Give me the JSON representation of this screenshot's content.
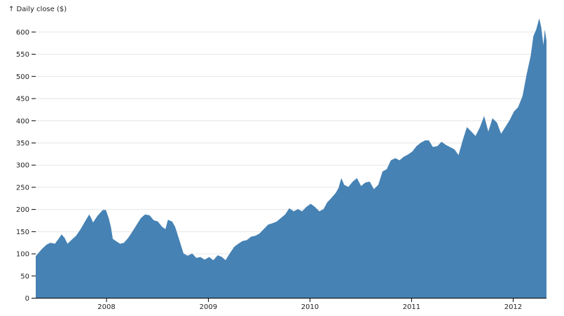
{
  "chart_data": {
    "type": "area",
    "title": "",
    "xlabel": "",
    "ylabel": "↑ Daily close ($)",
    "color": "#4682b4",
    "grid": "horizontal",
    "ylim": [
      0,
      640
    ],
    "xlim": [
      "2007-04-23",
      "2012-05-01"
    ],
    "yticks": [
      0,
      50,
      100,
      150,
      200,
      250,
      300,
      350,
      400,
      450,
      500,
      550,
      600
    ],
    "xticks": [
      "2008",
      "2009",
      "2010",
      "2011",
      "2012"
    ],
    "points": [
      [
        "2007-04-23",
        94
      ],
      [
        "2007-05-01",
        100
      ],
      [
        "2007-05-15",
        110
      ],
      [
        "2007-06-01",
        120
      ],
      [
        "2007-06-15",
        124
      ],
      [
        "2007-07-01",
        122
      ],
      [
        "2007-07-15",
        134
      ],
      [
        "2007-07-25",
        143
      ],
      [
        "2007-08-05",
        135
      ],
      [
        "2007-08-15",
        122
      ],
      [
        "2007-09-01",
        132
      ],
      [
        "2007-09-15",
        140
      ],
      [
        "2007-10-01",
        155
      ],
      [
        "2007-10-15",
        170
      ],
      [
        "2007-11-01",
        188
      ],
      [
        "2007-11-08",
        180
      ],
      [
        "2007-11-15",
        170
      ],
      [
        "2007-12-01",
        185
      ],
      [
        "2007-12-20",
        198
      ],
      [
        "2007-12-31",
        198
      ],
      [
        "2008-01-10",
        180
      ],
      [
        "2008-01-18",
        160
      ],
      [
        "2008-01-25",
        133
      ],
      [
        "2008-02-05",
        128
      ],
      [
        "2008-02-20",
        122
      ],
      [
        "2008-03-05",
        124
      ],
      [
        "2008-03-20",
        135
      ],
      [
        "2008-04-05",
        150
      ],
      [
        "2008-04-20",
        165
      ],
      [
        "2008-05-05",
        180
      ],
      [
        "2008-05-20",
        188
      ],
      [
        "2008-06-05",
        186
      ],
      [
        "2008-06-20",
        175
      ],
      [
        "2008-07-05",
        172
      ],
      [
        "2008-07-20",
        160
      ],
      [
        "2008-08-01",
        155
      ],
      [
        "2008-08-10",
        176
      ],
      [
        "2008-08-25",
        172
      ],
      [
        "2008-09-05",
        160
      ],
      [
        "2008-09-20",
        130
      ],
      [
        "2008-10-05",
        100
      ],
      [
        "2008-10-20",
        95
      ],
      [
        "2008-11-05",
        100
      ],
      [
        "2008-11-20",
        90
      ],
      [
        "2008-12-05",
        92
      ],
      [
        "2008-12-20",
        86
      ],
      [
        "2009-01-05",
        92
      ],
      [
        "2009-01-20",
        85
      ],
      [
        "2009-02-05",
        96
      ],
      [
        "2009-02-20",
        92
      ],
      [
        "2009-03-05",
        85
      ],
      [
        "2009-03-20",
        100
      ],
      [
        "2009-04-05",
        115
      ],
      [
        "2009-04-20",
        122
      ],
      [
        "2009-05-05",
        128
      ],
      [
        "2009-05-20",
        130
      ],
      [
        "2009-06-05",
        138
      ],
      [
        "2009-06-20",
        140
      ],
      [
        "2009-07-05",
        145
      ],
      [
        "2009-07-20",
        155
      ],
      [
        "2009-08-05",
        165
      ],
      [
        "2009-08-20",
        168
      ],
      [
        "2009-09-05",
        172
      ],
      [
        "2009-09-20",
        180
      ],
      [
        "2009-10-05",
        188
      ],
      [
        "2009-10-20",
        202
      ],
      [
        "2009-11-05",
        195
      ],
      [
        "2009-11-20",
        200
      ],
      [
        "2009-12-05",
        195
      ],
      [
        "2009-12-20",
        205
      ],
      [
        "2010-01-05",
        212
      ],
      [
        "2010-01-20",
        205
      ],
      [
        "2010-02-05",
        195
      ],
      [
        "2010-02-20",
        200
      ],
      [
        "2010-03-05",
        215
      ],
      [
        "2010-03-20",
        225
      ],
      [
        "2010-04-05",
        237
      ],
      [
        "2010-04-15",
        248
      ],
      [
        "2010-04-25",
        270
      ],
      [
        "2010-05-05",
        255
      ],
      [
        "2010-05-20",
        250
      ],
      [
        "2010-06-05",
        262
      ],
      [
        "2010-06-20",
        270
      ],
      [
        "2010-07-05",
        252
      ],
      [
        "2010-07-20",
        260
      ],
      [
        "2010-08-05",
        262
      ],
      [
        "2010-08-20",
        245
      ],
      [
        "2010-09-05",
        255
      ],
      [
        "2010-09-20",
        285
      ],
      [
        "2010-10-05",
        290
      ],
      [
        "2010-10-20",
        310
      ],
      [
        "2010-11-05",
        315
      ],
      [
        "2010-11-20",
        310
      ],
      [
        "2010-12-05",
        318
      ],
      [
        "2010-12-20",
        323
      ],
      [
        "2011-01-05",
        330
      ],
      [
        "2011-01-20",
        342
      ],
      [
        "2011-02-05",
        350
      ],
      [
        "2011-02-20",
        355
      ],
      [
        "2011-03-05",
        355
      ],
      [
        "2011-03-20",
        340
      ],
      [
        "2011-04-05",
        342
      ],
      [
        "2011-04-20",
        352
      ],
      [
        "2011-05-05",
        345
      ],
      [
        "2011-05-20",
        340
      ],
      [
        "2011-06-05",
        335
      ],
      [
        "2011-06-20",
        322
      ],
      [
        "2011-07-05",
        355
      ],
      [
        "2011-07-20",
        385
      ],
      [
        "2011-08-05",
        375
      ],
      [
        "2011-08-20",
        365
      ],
      [
        "2011-09-05",
        385
      ],
      [
        "2011-09-20",
        410
      ],
      [
        "2011-10-05",
        375
      ],
      [
        "2011-10-20",
        405
      ],
      [
        "2011-11-05",
        395
      ],
      [
        "2011-11-20",
        370
      ],
      [
        "2011-12-05",
        385
      ],
      [
        "2011-12-20",
        400
      ],
      [
        "2012-01-05",
        420
      ],
      [
        "2012-01-20",
        430
      ],
      [
        "2012-02-05",
        455
      ],
      [
        "2012-02-20",
        505
      ],
      [
        "2012-03-05",
        545
      ],
      [
        "2012-03-15",
        590
      ],
      [
        "2012-03-25",
        605
      ],
      [
        "2012-04-05",
        630
      ],
      [
        "2012-04-12",
        610
      ],
      [
        "2012-04-20",
        570
      ],
      [
        "2012-04-25",
        605
      ],
      [
        "2012-05-01",
        580
      ]
    ]
  }
}
